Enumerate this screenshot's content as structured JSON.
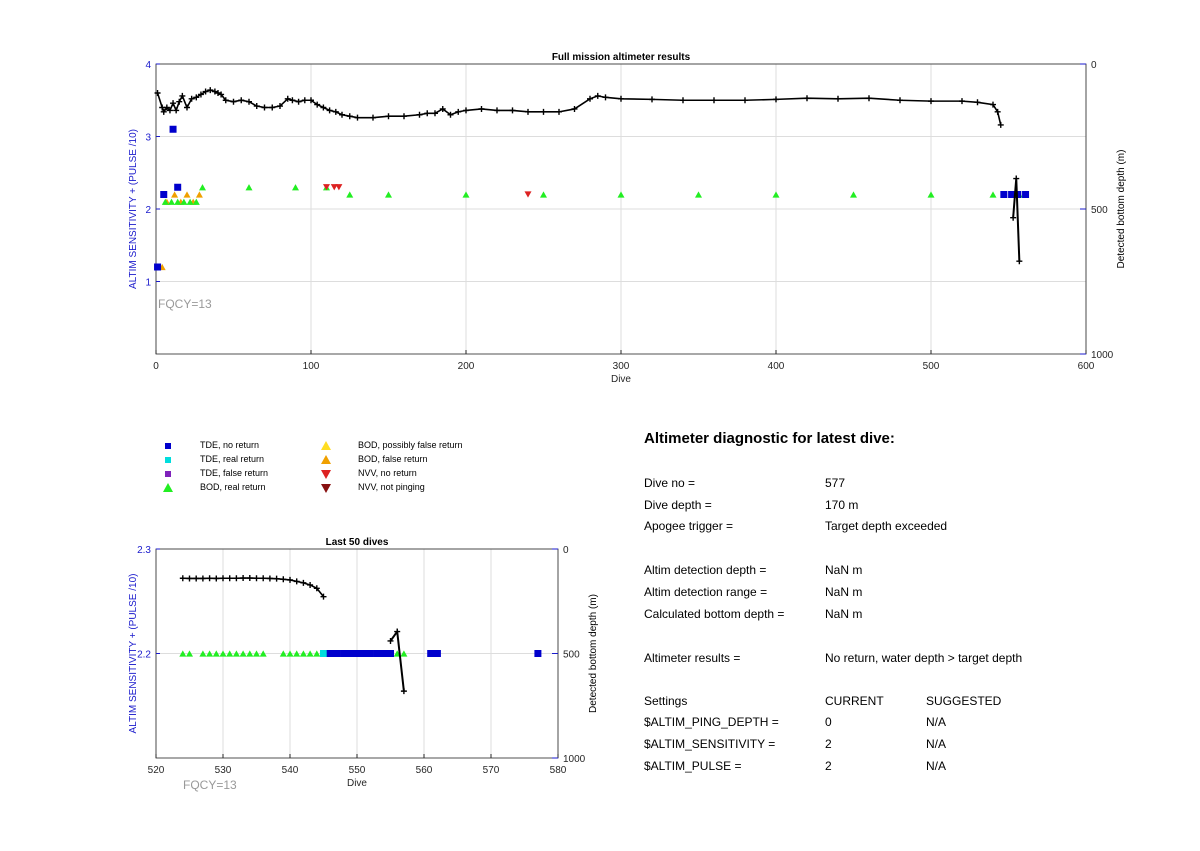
{
  "chart_data": [
    {
      "type": "scatter",
      "title": "Full mission altimeter results",
      "xlabel": "Dive",
      "ylabel": "ALTIM SENSITIVITY + (PULSE /10)",
      "ylabel_right": "Detected bottom depth (m)",
      "xlim": [
        0,
        600
      ],
      "ylim": [
        0,
        4
      ],
      "ylim_right": [
        1000,
        0
      ],
      "x_ticks": [
        "0",
        "100",
        "200",
        "300",
        "400",
        "500",
        "600"
      ],
      "y_ticks": [
        "1",
        "2",
        "3",
        "4"
      ],
      "y_right_ticks": [
        "0",
        "500",
        "1000"
      ],
      "grid": true,
      "annotation": "FQCY=13",
      "bottom_depth_series": {
        "x": [
          1,
          4,
          5,
          7,
          9,
          11,
          13,
          15,
          17,
          20,
          23,
          26,
          29,
          32,
          35,
          38,
          40,
          42,
          45,
          50,
          55,
          60,
          65,
          70,
          75,
          80,
          85,
          88,
          92,
          96,
          100,
          104,
          108,
          112,
          116,
          120,
          125,
          130,
          140,
          150,
          160,
          170,
          175,
          180,
          185,
          190,
          195,
          200,
          210,
          220,
          230,
          240,
          250,
          260,
          270,
          280,
          285,
          290,
          300,
          320,
          340,
          360,
          380,
          400,
          420,
          440,
          460,
          480,
          500,
          520,
          530,
          540,
          543,
          545
        ],
        "y": [
          100,
          150,
          165,
          150,
          160,
          135,
          160,
          130,
          110,
          150,
          120,
          115,
          105,
          95,
          90,
          95,
          100,
          105,
          125,
          130,
          125,
          130,
          145,
          150,
          150,
          145,
          120,
          125,
          130,
          125,
          125,
          140,
          150,
          160,
          165,
          175,
          180,
          185,
          185,
          180,
          180,
          175,
          170,
          170,
          155,
          175,
          165,
          160,
          155,
          160,
          160,
          165,
          165,
          165,
          155,
          120,
          110,
          115,
          120,
          122,
          125,
          125,
          125,
          122,
          118,
          120,
          118,
          125,
          128,
          128,
          132,
          140,
          165,
          210
        ]
      },
      "bod_real_return": {
        "x": [
          6,
          10,
          14,
          18,
          22,
          26,
          30,
          60,
          90,
          110,
          125,
          150,
          200,
          250,
          300,
          350,
          400,
          450,
          500,
          540,
          557
        ],
        "y": [
          2.1,
          2.1,
          2.1,
          2.1,
          2.1,
          2.1,
          2.3,
          2.3,
          2.3,
          2.3,
          2.2,
          2.2,
          2.2,
          2.2,
          2.2,
          2.2,
          2.2,
          2.2,
          2.2,
          2.2,
          2.2
        ]
      },
      "bod_false_return": {
        "x": [
          4,
          7,
          12,
          16,
          20,
          24,
          28
        ],
        "y": [
          1.2,
          2.1,
          2.2,
          2.1,
          2.2,
          2.1,
          2.2
        ]
      },
      "tde_no_return": {
        "x": [
          1,
          5,
          11,
          14,
          547,
          552,
          556,
          561
        ],
        "y": [
          1.2,
          2.2,
          3.1,
          2.3,
          2.2,
          2.2,
          2.2,
          2.2
        ]
      },
      "nvv_no_return": {
        "x": [
          110,
          115,
          118,
          240
        ],
        "y": [
          2.3,
          2.3,
          2.3,
          2.2
        ]
      },
      "final_dive_depth_line": {
        "x": [
          553,
          555,
          557
        ],
        "y": [
          530,
          395,
          680
        ]
      }
    },
    {
      "type": "scatter",
      "title": "Last 50 dives",
      "xlabel": "Dive",
      "ylabel": "ALTIM SENSITIVITY + (PULSE /10)",
      "ylabel_right": "Detected bottom depth (m)",
      "xlim": [
        520,
        580
      ],
      "ylim": [
        2.1,
        2.3
      ],
      "ylim_right": [
        1000,
        0
      ],
      "x_ticks": [
        "520",
        "530",
        "540",
        "550",
        "560",
        "570",
        "580"
      ],
      "y_ticks": [
        "2.2",
        "2.3"
      ],
      "y_right_ticks": [
        "0",
        "500",
        "1000"
      ],
      "grid": true,
      "annotation": "FQCY=13",
      "bottom_depth_series": {
        "x": [
          524,
          525,
          526,
          527,
          528,
          529,
          530,
          531,
          532,
          533,
          534,
          535,
          536,
          537,
          538,
          539,
          540,
          541,
          542,
          543,
          544,
          545
        ],
        "y": [
          140,
          141,
          141,
          141,
          140,
          141,
          140,
          140,
          140,
          139,
          139,
          140,
          140,
          141,
          142,
          145,
          148,
          155,
          162,
          172,
          188,
          228
        ]
      },
      "bod_real_return": {
        "x": [
          524,
          525,
          527,
          528,
          529,
          530,
          531,
          532,
          533,
          534,
          535,
          536,
          539,
          540,
          541,
          542,
          543,
          544,
          555,
          556,
          557
        ],
        "y": [
          2.2,
          2.2,
          2.2,
          2.2,
          2.2,
          2.2,
          2.2,
          2.2,
          2.2,
          2.2,
          2.2,
          2.2,
          2.2,
          2.2,
          2.2,
          2.2,
          2.2,
          2.2,
          2.2,
          2.2,
          2.2
        ]
      },
      "tde_real_return": {
        "x": [
          545
        ],
        "y": [
          2.2
        ]
      },
      "tde_no_return": {
        "x": [
          546,
          547,
          548,
          549,
          550,
          551,
          552,
          553,
          554,
          555,
          561,
          562,
          577
        ],
        "y": [
          2.2,
          2.2,
          2.2,
          2.2,
          2.2,
          2.2,
          2.2,
          2.2,
          2.2,
          2.2,
          2.2,
          2.2,
          2.2
        ]
      },
      "final_dive_depth_line": {
        "x": [
          555,
          556,
          557
        ],
        "y": [
          440,
          395,
          680
        ]
      }
    }
  ],
  "legend": {
    "items": [
      {
        "label": "TDE, no return",
        "color": "#0000cc",
        "shape": "square"
      },
      {
        "label": "TDE, real return",
        "color": "#00dddd",
        "shape": "square"
      },
      {
        "label": "TDE, false return",
        "color": "#7f22bb",
        "shape": "square"
      },
      {
        "label": "BOD, real return",
        "color": "#22ee22",
        "shape": "triangle-up"
      },
      {
        "label": "BOD, possibly false return",
        "color": "#ffdd22",
        "shape": "triangle-up"
      },
      {
        "label": "BOD, false return",
        "color": "#f0a000",
        "shape": "triangle-up"
      },
      {
        "label": "NVV, no return",
        "color": "#dd2222",
        "shape": "triangle-down"
      },
      {
        "label": "NVV, not pinging",
        "color": "#881111",
        "shape": "triangle-down"
      }
    ]
  },
  "diagnostic": {
    "title": "Altimeter diagnostic for latest dive:",
    "rows": [
      {
        "label": "Dive no =",
        "value": "577"
      },
      {
        "label": "Dive depth =",
        "value": "170 m"
      },
      {
        "label": "Apogee trigger =",
        "value": "Target depth exceeded"
      },
      {
        "label": "Altim detection depth =",
        "value": "NaN m"
      },
      {
        "label": "Altim detection range =",
        "value": "NaN m"
      },
      {
        "label": "Calculated bottom depth =",
        "value": "NaN m"
      },
      {
        "label": "Altimeter results =",
        "value": "No return, water depth > target depth"
      }
    ],
    "settings_header": {
      "label": "Settings",
      "current": "CURRENT",
      "suggested": "SUGGESTED"
    },
    "settings": [
      {
        "label": "$ALTIM_PING_DEPTH =",
        "current": "0",
        "suggested": "N/A"
      },
      {
        "label": "$ALTIM_SENSITIVITY =",
        "current": "2",
        "suggested": "N/A"
      },
      {
        "label": "$ALTIM_PULSE =",
        "current": "2",
        "suggested": "N/A"
      }
    ]
  },
  "colors": {
    "axis_left": "#1a1acc",
    "axis_right": "#000000",
    "grid": "#dddddd",
    "annotation": "#999999"
  }
}
